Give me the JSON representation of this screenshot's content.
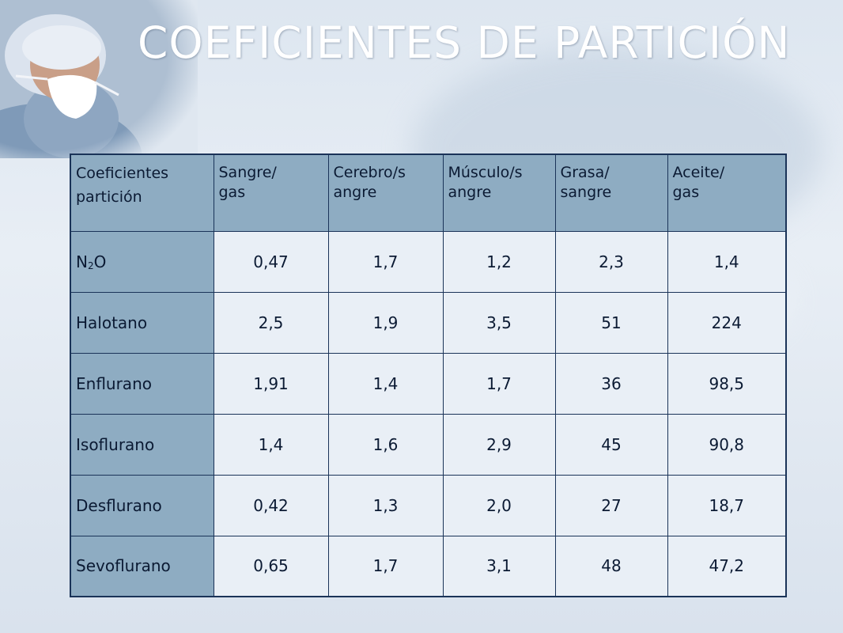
{
  "title": "COEFICIENTES DE PARTICIÓN",
  "table": {
    "header": [
      "Coeficientes\npartición",
      "Sangre/\ngas",
      "Cerebro/s\nangre",
      "Músculo/s\nangre",
      "Grasa/\nsangre",
      "Aceite/\ngas"
    ],
    "rows": [
      {
        "agent": {
          "main": "N",
          "sub": "2",
          "tail": "O"
        },
        "values": [
          "0,47",
          "1,7",
          "1,2",
          "2,3",
          "1,4"
        ]
      },
      {
        "agent": "Halotano",
        "values": [
          "2,5",
          "1,9",
          "3,5",
          "51",
          "224"
        ]
      },
      {
        "agent": "Enflurano",
        "values": [
          "1,91",
          "1,4",
          "1,7",
          "36",
          "98,5"
        ]
      },
      {
        "agent": "Isoflurano",
        "values": [
          "1,4",
          "1,6",
          "2,9",
          "45",
          "90,8"
        ]
      },
      {
        "agent": "Desflurano",
        "values": [
          "0,42",
          "1,3",
          "2,0",
          "27",
          "18,7"
        ]
      },
      {
        "agent": "Sevoflurano",
        "values": [
          "0,65",
          "1,7",
          "3,1",
          "48",
          "47,2"
        ]
      }
    ]
  },
  "colors": {
    "header_bg": "#8eacc2",
    "cell_bg": "#e9eff6",
    "border": "#1a3358",
    "title": "#ffffff"
  }
}
